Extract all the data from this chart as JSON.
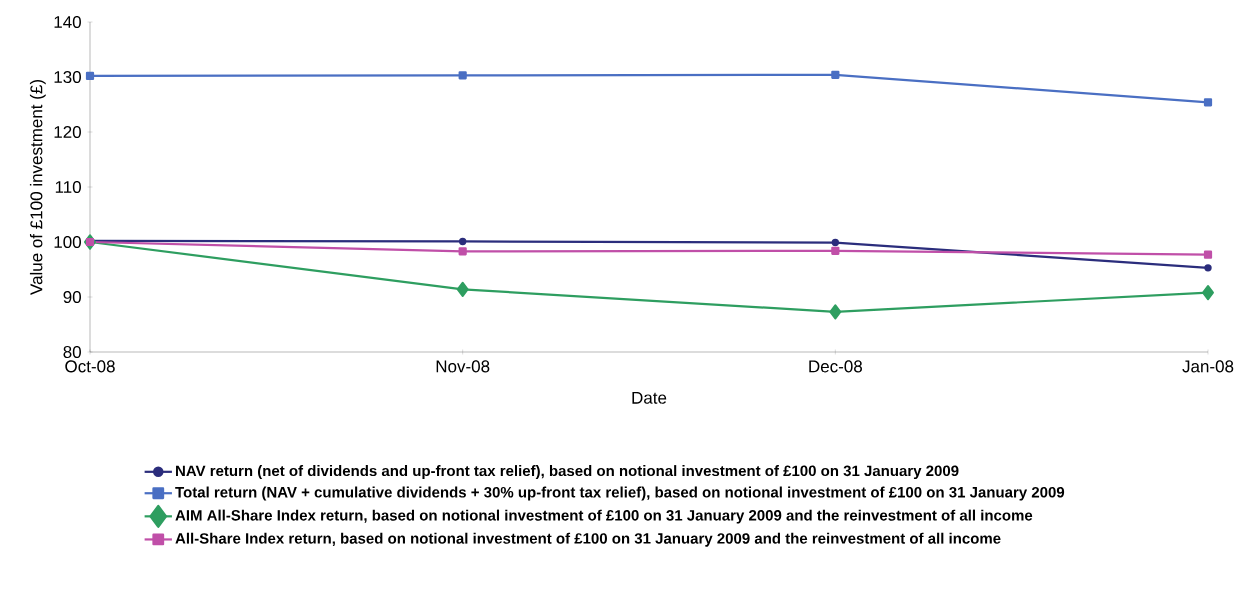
{
  "chart_data": {
    "type": "line",
    "xlabel": "Date",
    "ylabel": "Value of £100 investment (£)",
    "categories": [
      "Oct-08",
      "Nov-08",
      "Dec-08",
      "Jan-08"
    ],
    "series": [
      {
        "name": "NAV return (net of dividends and up-front tax relief), based on notional investment of £100 on 31 January 2009",
        "color": "#2b2d7c",
        "marker": "circle",
        "values": [
          100.2,
          100.1,
          99.9,
          95.3
        ]
      },
      {
        "name": "Total return (NAV + cumulative dividends + 30% up-front tax relief), based on notional investment of £100 on 31 January 2009",
        "color": "#4a6fc3",
        "marker": "square",
        "values": [
          130.2,
          130.3,
          130.4,
          125.4
        ]
      },
      {
        "name": "AIM All-Share Index return, based on notional investment of £100 on 31 January 2009 and the reinvestment of all income",
        "color": "#2e9e60",
        "marker": "diamond",
        "values": [
          100.0,
          91.4,
          87.3,
          90.8
        ]
      },
      {
        "name": "All-Share Index return, based on notional investment of £100 on 31 January 2009 and the reinvestment of all income",
        "color": "#c04fa8",
        "marker": "square",
        "values": [
          100.0,
          98.3,
          98.4,
          97.7
        ]
      }
    ],
    "ylim": [
      80,
      140
    ],
    "yticks": [
      80,
      90,
      100,
      110,
      120,
      130,
      140
    ],
    "grid": false,
    "legend": "bottom",
    "line_style": "solid"
  }
}
